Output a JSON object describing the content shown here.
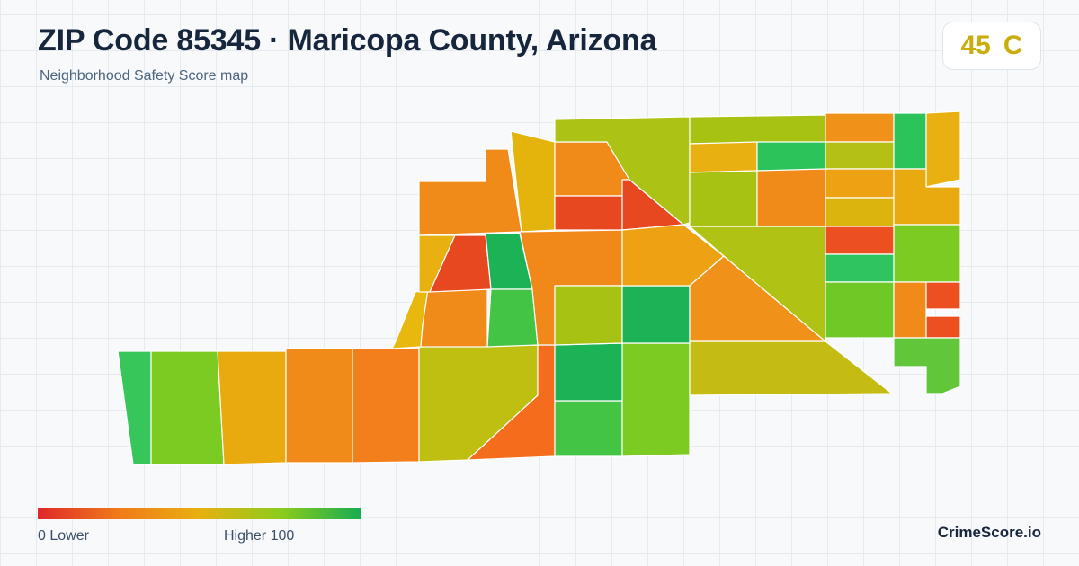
{
  "header": {
    "title": "ZIP Code 85345 · Maricopa County, Arizona",
    "subtitle": "Neighborhood Safety Score map"
  },
  "score": {
    "value": "45",
    "grade": "C",
    "color": "#c9ad0c"
  },
  "legend": {
    "min_label": "0  Lower",
    "max_label": "Higher  100",
    "colors": [
      "#e0282a",
      "#f07a1a",
      "#e8b010",
      "#8ccc1c",
      "#17ac52"
    ]
  },
  "brand": "CrimeScore.io"
}
